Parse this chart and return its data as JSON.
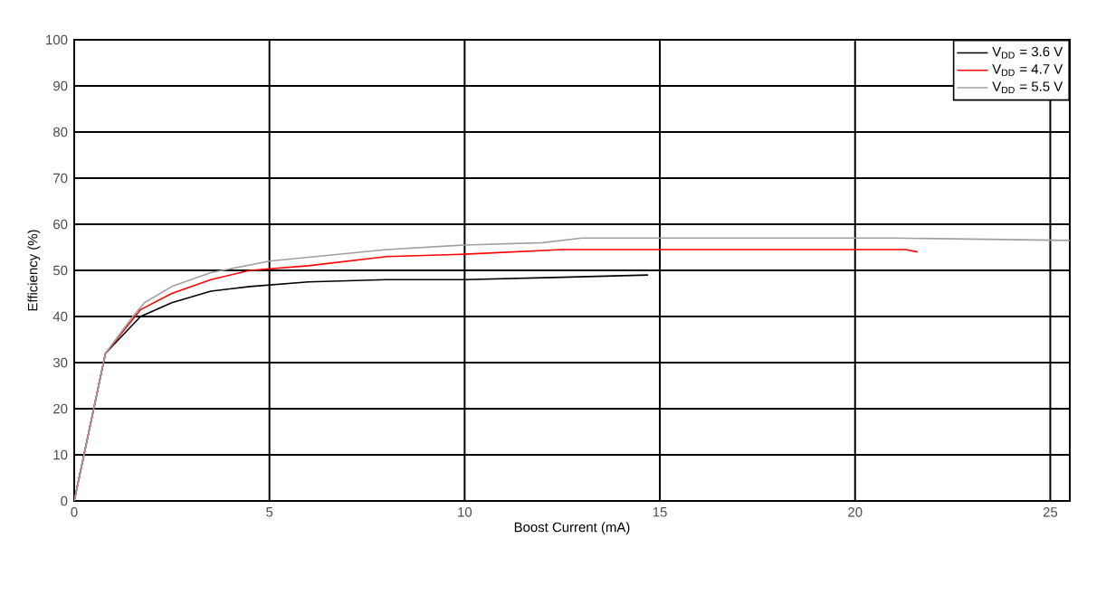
{
  "chart_data": {
    "type": "line",
    "xlabel": "Boost Current (mA)",
    "ylabel": "Efficiency (%)",
    "xlim": [
      0,
      25.5
    ],
    "ylim": [
      0,
      100
    ],
    "xticks": [
      0,
      5,
      10,
      15,
      20,
      25
    ],
    "yticks": [
      0,
      10,
      20,
      30,
      40,
      50,
      60,
      70,
      80,
      90,
      100
    ],
    "grid": true,
    "legend": "top right",
    "marker": "none",
    "line_style": "solid",
    "series": [
      {
        "name": "V$_{DD}$ = 3.6 V",
        "color": "#000000",
        "x": [
          0,
          0.8,
          1.7,
          2.5,
          3.5,
          4.5,
          6,
          8,
          10,
          12.5,
          14.7
        ],
        "values": [
          0,
          32,
          40,
          43,
          45.5,
          46.5,
          47.5,
          48,
          48,
          48.5,
          49
        ]
      },
      {
        "name": "V$_{DD}$ = 4.7 V",
        "color": "#ff0000",
        "x": [
          0,
          0.8,
          1.7,
          2.5,
          3.5,
          4.5,
          6,
          8,
          10,
          12.5,
          15,
          21.3,
          21.6
        ],
        "values": [
          0,
          32,
          41.5,
          45,
          48,
          50,
          51,
          53,
          53.5,
          54.5,
          54.5,
          54.5,
          54
        ]
      },
      {
        "name": "V$_{DD}$ = 5.5 V",
        "color": "#a0a0a0",
        "x": [
          0,
          0.8,
          1.5,
          1.8,
          2.5,
          3.5,
          5,
          8,
          10,
          12,
          13,
          21,
          25.5
        ],
        "values": [
          0,
          32,
          40,
          43,
          46.5,
          49.5,
          52,
          54.5,
          55.5,
          56,
          57,
          57,
          56.5
        ]
      }
    ]
  }
}
